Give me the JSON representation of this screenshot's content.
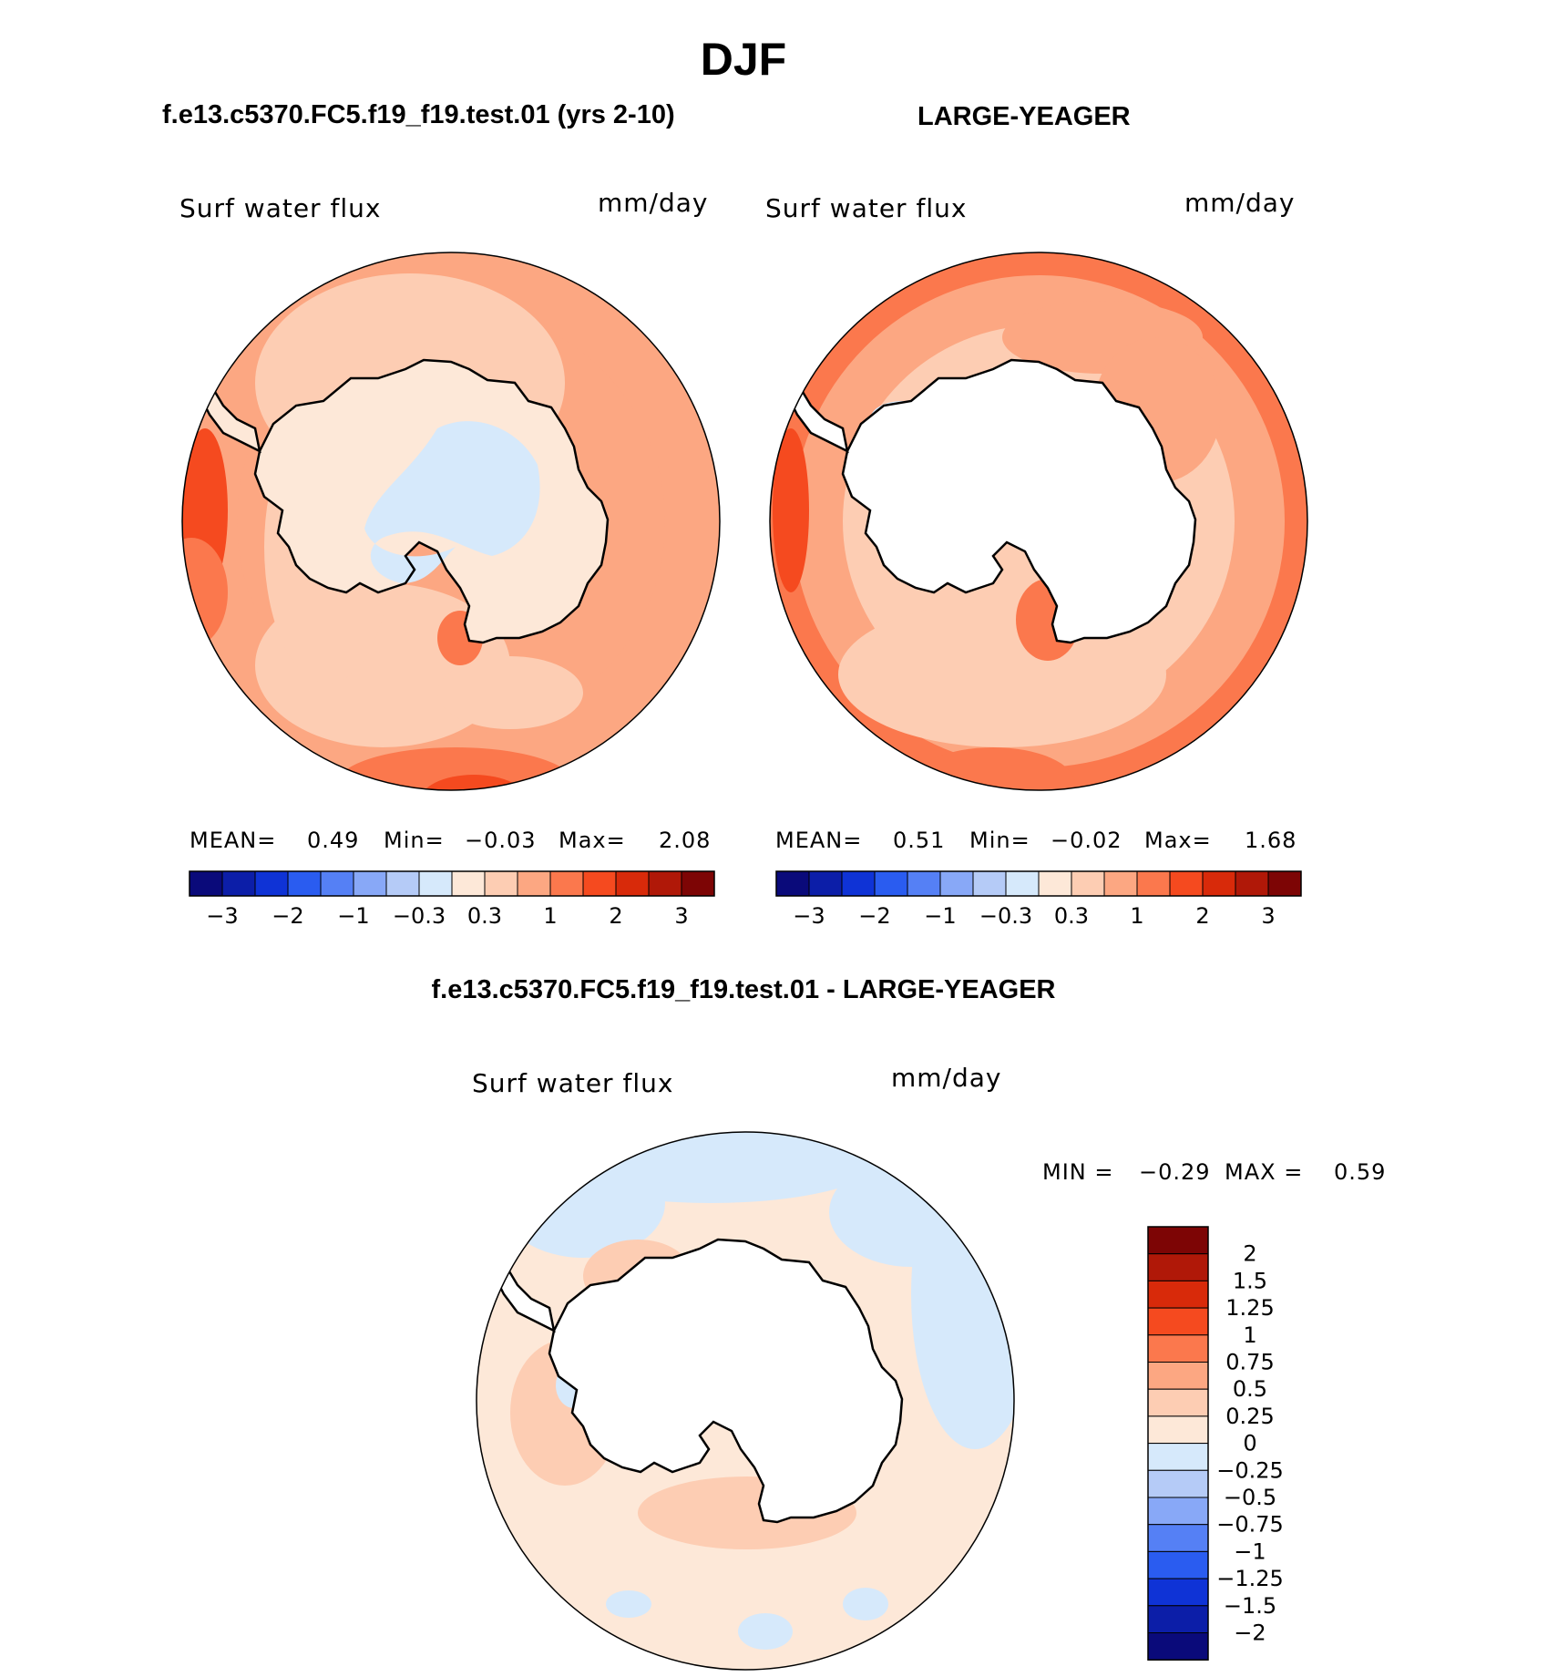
{
  "season": "DJF",
  "panels": [
    {
      "case": "f.e13.c5370.FC5.f19_f19.test.01 (yrs 2-10)",
      "variable": "Surf water flux",
      "units": "mm/day",
      "stats": {
        "mean_label": "MEAN=",
        "mean": "0.49",
        "min_label": "Min=",
        "min": "−0.03",
        "max_label": "Max=",
        "max": "2.08"
      }
    },
    {
      "case": "LARGE-YEAGER",
      "variable": "Surf water flux",
      "units": "mm/day",
      "stats": {
        "mean_label": "MEAN=",
        "mean": "0.51",
        "min_label": "Min=",
        "min": "−0.02",
        "max_label": "Max=",
        "max": "1.68"
      }
    }
  ],
  "diff_panel": {
    "title": "f.e13.c5370.FC5.f19_f19.test.01 - LARGE-YEAGER",
    "variable": "Surf water flux",
    "units": "mm/day",
    "min_label": "MIN =",
    "min": "−0.29",
    "max_label": "MAX =",
    "max": "0.59"
  },
  "horizontal_colorbar": {
    "colors": [
      "#0a0a7a",
      "#0c1ea8",
      "#0f33d6",
      "#2a5cf0",
      "#5580f5",
      "#88a8f7",
      "#b5cbf7",
      "#d6e9fb",
      "#fde8d8",
      "#fdcdb3",
      "#fca782",
      "#fb784d",
      "#f54a1f",
      "#d82a0a",
      "#b01808",
      "#7d0505"
    ],
    "tick_labels": [
      "−3",
      "−2",
      "−1",
      "−0.3",
      "0.3",
      "1",
      "2",
      "3"
    ]
  },
  "vertical_colorbar": {
    "colors_top_to_bottom": [
      "#7d0505",
      "#b01808",
      "#d82a0a",
      "#f54a1f",
      "#fb784d",
      "#fca782",
      "#fdcdb3",
      "#fde8d8",
      "#d6e9fb",
      "#b5cbf7",
      "#88a8f7",
      "#5580f5",
      "#2a5cf0",
      "#0f33d6",
      "#0c1ea8",
      "#0a0a7a"
    ],
    "tick_labels": [
      "2",
      "1.5",
      "1.25",
      "1",
      "0.75",
      "0.5",
      "0.25",
      "0",
      "−0.25",
      "−0.5",
      "−0.75",
      "−1",
      "−1.25",
      "−1.5",
      "−2"
    ]
  }
}
